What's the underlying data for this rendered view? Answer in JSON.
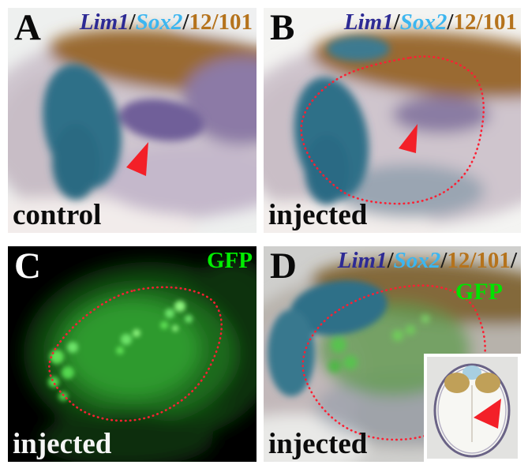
{
  "figure": {
    "background_color": "#ffffff",
    "colors": {
      "outline_red": "#fb2033",
      "arrow_red": "#f32028",
      "panel_c_background": "#000000"
    },
    "stains": {
      "sox2_teal": "#2f7088",
      "muscle_brown": "#9a6b31",
      "lim1_purple": "#6f5f99",
      "gfp_glow": "#2f9a2f",
      "gfp_bright": "#5fe055",
      "inset_blue": "#a8cfe2",
      "inset_tan": "#c0a058",
      "inset_rim": "#6a6386"
    },
    "panels": [
      {
        "letter": "A",
        "letter_color": "#0a0a0a",
        "caption": "control",
        "caption_color": "#0c0c0c",
        "markers": [
          {
            "text": "Lim1",
            "color": "#2d2a94",
            "italic": true
          },
          {
            "text": "/",
            "color": "#1b1b1b",
            "italic": false
          },
          {
            "text": "Sox2",
            "color": "#3cb6f0",
            "italic": true
          },
          {
            "text": "/",
            "color": "#1b1b1b",
            "italic": false
          },
          {
            "text": "12/101",
            "color": "#b5731d",
            "italic": false
          }
        ]
      },
      {
        "letter": "B",
        "letter_color": "#0a0a0a",
        "caption": "injected",
        "caption_color": "#0c0c0c",
        "markers": [
          {
            "text": "Lim1",
            "color": "#2d2a94",
            "italic": true
          },
          {
            "text": "/",
            "color": "#1b1b1b",
            "italic": false
          },
          {
            "text": "Sox2",
            "color": "#3cb6f0",
            "italic": true
          },
          {
            "text": "/",
            "color": "#1b1b1b",
            "italic": false
          },
          {
            "text": "12/101",
            "color": "#b5731d",
            "italic": false
          }
        ]
      },
      {
        "letter": "C",
        "letter_color": "#ffffff",
        "caption": "injected",
        "caption_color": "#f5f5f5",
        "markers": [
          {
            "text": "GFP",
            "color": "#00ee00",
            "italic": false
          }
        ]
      },
      {
        "letter": "D",
        "letter_color": "#0a0a0a",
        "caption": "injected",
        "caption_color": "#0c0c0c",
        "markers": [
          {
            "text": "Lim1",
            "color": "#2d2a94",
            "italic": true
          },
          {
            "text": "/",
            "color": "#1b1b1b",
            "italic": false
          },
          {
            "text": "Sox2",
            "color": "#3cb6f0",
            "italic": true
          },
          {
            "text": "/",
            "color": "#1b1b1b",
            "italic": false
          },
          {
            "text": "12/101",
            "color": "#b5731d",
            "italic": false
          },
          {
            "text": "/",
            "color": "#1b1b1b",
            "italic": false
          }
        ],
        "markers_line2": [
          {
            "text": "GFP",
            "color": "#00e400",
            "italic": false
          }
        ]
      }
    ]
  }
}
